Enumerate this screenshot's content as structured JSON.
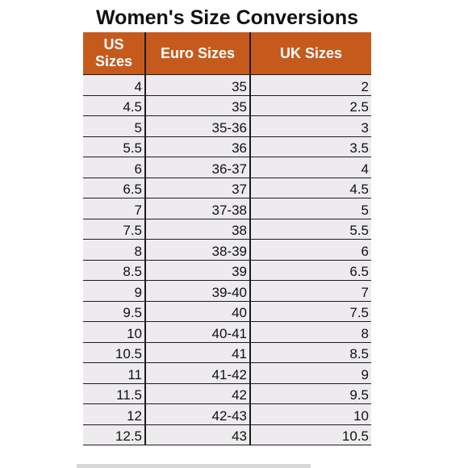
{
  "title": "Women's Size Conversions",
  "headers": [
    "US Sizes",
    "Euro Sizes",
    "UK Sizes"
  ],
  "rows": [
    [
      "4",
      "35",
      "2"
    ],
    [
      "4.5",
      "35",
      "2.5"
    ],
    [
      "5",
      "35-36",
      "3"
    ],
    [
      "5.5",
      "36",
      "3.5"
    ],
    [
      "6",
      "36-37",
      "4"
    ],
    [
      "6.5",
      "37",
      "4.5"
    ],
    [
      "7",
      "37-38",
      "5"
    ],
    [
      "7.5",
      "38",
      "5.5"
    ],
    [
      "8",
      "38-39",
      "6"
    ],
    [
      "8.5",
      "39",
      "6.5"
    ],
    [
      "9",
      "39-40",
      "7"
    ],
    [
      "9.5",
      "40",
      "7.5"
    ],
    [
      "10",
      "40-41",
      "8"
    ],
    [
      "10.5",
      "41",
      "8.5"
    ],
    [
      "11",
      "41-42",
      "9"
    ],
    [
      "11.5",
      "42",
      "9.5"
    ],
    [
      "12",
      "42-43",
      "10"
    ],
    [
      "12.5",
      "43",
      "10.5"
    ]
  ],
  "colors": {
    "header_bg": "#c65a1d",
    "header_text": "#ffffff",
    "cell_bg": "#edebee",
    "border": "#1c1c1c"
  }
}
